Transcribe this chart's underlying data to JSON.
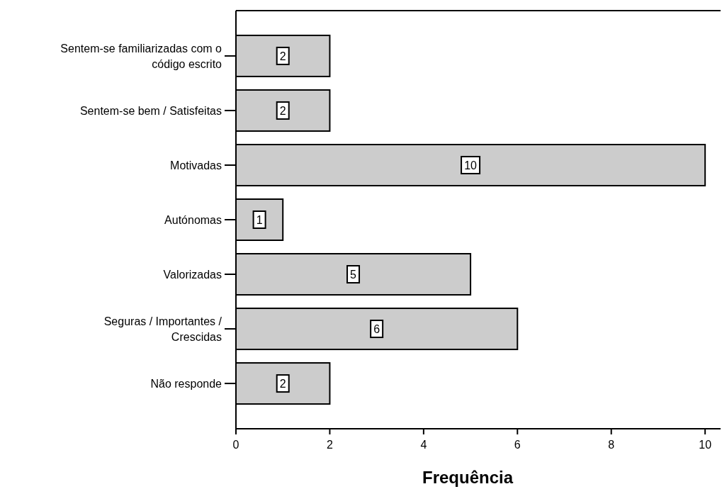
{
  "chart_data": {
    "type": "bar",
    "orientation": "horizontal",
    "xlabel": "Frequência",
    "categories": [
      "Sentem-se familiarizadas com o código escrito",
      "Sentem-se bem / Satisfeitas",
      "Motivadas",
      "Autónomas",
      "Valorizadas",
      "Seguras / Importantes / Crescidas",
      "Não responde"
    ],
    "values": [
      2,
      2,
      10,
      1,
      5,
      6,
      2
    ],
    "color": "#cccccc",
    "xlim": [
      0,
      10.33
    ],
    "xticks": [
      0,
      2,
      4,
      6,
      8,
      10
    ],
    "data_labels": true
  }
}
